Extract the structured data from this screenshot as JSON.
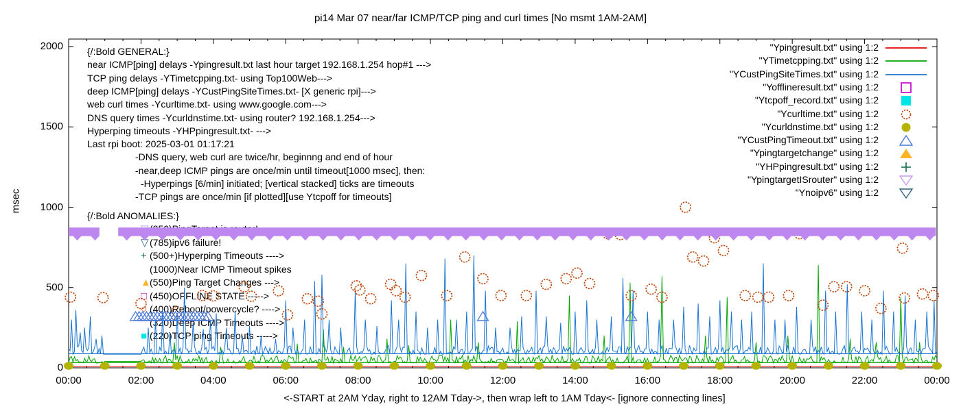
{
  "title": "pi14 Mar 07  near/far ICMP/TCP ping and curl times [No msmt 1AM-2AM]",
  "ylabel": "msec",
  "xlabel": "<-START at 2AM Yday, right to 12AM Tday->, then wrap left to 1AM Tday<- [ignore connecting lines]",
  "legend": [
    {
      "label": "\"Ypingresult.txt\" using 1:2",
      "marker": "line",
      "color": "#e60000"
    },
    {
      "label": "\"YTimetcpping.txt\" using 1:2",
      "marker": "line",
      "color": "#00a400"
    },
    {
      "label": "\"YCustPingSiteTimes.txt\" using 1:2",
      "marker": "line",
      "color": "#1874d2"
    },
    {
      "label": "\"Yofflineresult.txt\" using 1:2",
      "marker": "sq-open",
      "color": "#c913cf"
    },
    {
      "label": "\"Ytcpoff_record.txt\" using 1:2",
      "marker": "sq-fill",
      "color": "#00e5e5"
    },
    {
      "label": "\"Ycurltime.txt\" using 1:2",
      "marker": "circ-open",
      "color": "#bf4b12"
    },
    {
      "label": "\"Ycurldnstime.txt\" using 1:2",
      "marker": "circ-fill",
      "color": "#b3b300"
    },
    {
      "label": "\"YCustPingTimeout.txt\" using 1:2",
      "marker": "tri-up-open",
      "color": "#4878d8"
    },
    {
      "label": "\"Ypingtargetchange\" using 1:2",
      "marker": "tri-up-fill",
      "color": "#ffb428"
    },
    {
      "label": "\"YHPpingresult.txt\" using 1:2",
      "marker": "plus",
      "color": "#156e4e"
    },
    {
      "label": "\"YpingtargetISrouter\" using 1:2",
      "marker": "tri-dn-open",
      "color": "#c79af0"
    },
    {
      "label": "\"Ynoipv6\" using 1:2",
      "marker": "tri-dn-open",
      "color": "#2e617e"
    }
  ],
  "annotations": {
    "general": [
      {
        "text": "{/:Bold GENERAL:}",
        "indent": 0
      },
      {
        "text": "near ICMP[ping] delays -Ypingresult.txt last hour target 192.168.1.254 hop#1 --->",
        "indent": 0
      },
      {
        "text": "TCP ping delays -YTimetcpping.txt- using Top100Web--->",
        "indent": 0
      },
      {
        "text": "deep ICMP[ping] delays -YCustPingSiteTimes.txt- [X generic rpi]--->",
        "indent": 0
      },
      {
        "text": "web curl times -Ycurltime.txt- using www.google.com--->",
        "indent": 0
      },
      {
        "text": "DNS query times -Ycurldnstime.txt- using router? 192.168.1.254--->",
        "indent": 0
      },
      {
        "text": "Hyperping timeouts -YHPpingresult.txt- --->",
        "indent": 0
      },
      {
        "text": "Last rpi boot: 2025-03-01 01:17:21",
        "indent": 0
      },
      {
        "text": "-DNS query, web curl are twice/hr, beginnng and end of hour",
        "indent": 70
      },
      {
        "text": "-near,deep ICMP pings are once/min until timeout[1000 msec], then:",
        "indent": 70
      },
      {
        "text": "-Hyperpings [6/min] initiated; [vertical stacked] ticks are timeouts",
        "indent": 78
      },
      {
        "text": "-TCP pings are once/min [if plotted][use Ytcpoff for timeouts]",
        "indent": 70
      }
    ],
    "anomalies": [
      {
        "glyph": "",
        "color": "",
        "text": "{/:Bold ANOMALIES:}",
        "x": 127
      },
      {
        "glyph": "▽",
        "color": "#c79af0",
        "text": "(850)PingTarget is router!",
        "x": 205
      },
      {
        "glyph": "▽",
        "color": "#2e617e",
        "text": "(785)ipv6 failure!",
        "x": 205
      },
      {
        "glyph": "+",
        "color": "#156e4e",
        "text": "(500+)Hyperping Timeouts ---->",
        "x": 205
      },
      {
        "glyph": "",
        "color": "",
        "text": "(1000)Near ICMP Timeout spikes",
        "x": 205
      },
      {
        "glyph": "▲",
        "color": "#ffb428",
        "text": "(550)Ping Target Changes --->",
        "x": 205
      },
      {
        "glyph": "□",
        "color": "#c913cf",
        "text": "(450)OFFLINE STATE ----->",
        "x": 205
      },
      {
        "glyph": "○",
        "color": "#bf4b12",
        "text": "(400)Reboot/powercycle? ---->",
        "x": 205
      },
      {
        "glyph": "",
        "color": "",
        "text": "(320)Deep ICMP Timeouts ---->",
        "x": 205
      },
      {
        "glyph": "■",
        "color": "#00e5e5",
        "text": "(220)TCP ping Timeouts ----->",
        "x": 205
      }
    ]
  },
  "chart_data": {
    "type": "line+scatter",
    "axis": {
      "xlim_hours": [
        0,
        24
      ],
      "ylim": [
        0,
        2000
      ],
      "yticks": [
        0,
        500,
        1000,
        1500,
        2000
      ],
      "xtick_hours": [
        0,
        2,
        4,
        6,
        8,
        10,
        12,
        14,
        16,
        18,
        20,
        22,
        24
      ],
      "xtick_labels": [
        "00:00",
        "02:00",
        "04:00",
        "06:00",
        "08:00",
        "10:00",
        "12:00",
        "14:00",
        "16:00",
        "18:00",
        "20:00",
        "22:00",
        "00:00"
      ]
    },
    "no_measurement_gap_hours": [
      1,
      2
    ],
    "series": [
      {
        "name": "Ypingresult.txt",
        "type": "flat-line",
        "color": "#e60000",
        "y": 8
      },
      {
        "name": "YTimetcpping.txt",
        "type": "noisy-line",
        "color": "#00a400",
        "seed": 777,
        "base": 30,
        "noise": 48,
        "gap_y": 40,
        "spikes": [
          [
            2.9,
            160
          ],
          [
            4.2,
            130
          ],
          [
            6.3,
            150
          ],
          [
            7.05,
            240
          ],
          [
            7.6,
            130
          ],
          [
            8.8,
            180
          ],
          [
            9.4,
            140
          ],
          [
            10.55,
            300
          ],
          [
            11.3,
            160
          ],
          [
            12.4,
            290
          ],
          [
            13.85,
            450
          ],
          [
            14.8,
            200
          ],
          [
            15.5,
            530
          ],
          [
            16.4,
            570
          ],
          [
            17.6,
            200
          ],
          [
            18.2,
            440
          ],
          [
            19.0,
            160
          ],
          [
            19.9,
            200
          ],
          [
            20.7,
            640
          ],
          [
            21.6,
            180
          ],
          [
            22.3,
            160
          ],
          [
            23.0,
            440
          ],
          [
            23.5,
            160
          ]
        ]
      },
      {
        "name": "YCustPingSiteTimes.txt",
        "type": "noisy-line",
        "color": "#1874d2",
        "seed": 1,
        "base": 85,
        "noise": 55,
        "gap_y": 85,
        "spikes": [
          [
            0.08,
            300
          ],
          [
            0.18,
            360
          ],
          [
            0.3,
            220
          ],
          [
            0.45,
            250
          ],
          [
            0.6,
            320
          ],
          [
            0.75,
            180
          ],
          [
            0.9,
            200
          ],
          [
            2.2,
            250
          ],
          [
            2.4,
            300
          ],
          [
            2.6,
            360
          ],
          [
            2.8,
            220
          ],
          [
            3.0,
            340
          ],
          [
            3.2,
            500
          ],
          [
            3.45,
            280
          ],
          [
            3.7,
            240
          ],
          [
            3.9,
            300
          ],
          [
            4.1,
            340
          ],
          [
            4.35,
            250
          ],
          [
            4.6,
            350
          ],
          [
            4.8,
            200
          ],
          [
            5.0,
            260
          ],
          [
            5.3,
            200
          ],
          [
            5.7,
            180
          ],
          [
            6.0,
            420
          ],
          [
            6.2,
            250
          ],
          [
            6.5,
            300
          ],
          [
            6.8,
            540
          ],
          [
            7.0,
            580
          ],
          [
            7.2,
            300
          ],
          [
            7.5,
            250
          ],
          [
            7.9,
            480
          ],
          [
            8.2,
            300
          ],
          [
            8.5,
            260
          ],
          [
            8.9,
            420
          ],
          [
            9.1,
            300
          ],
          [
            9.3,
            650
          ],
          [
            9.6,
            350
          ],
          [
            9.9,
            250
          ],
          [
            10.2,
            300
          ],
          [
            10.4,
            680
          ],
          [
            10.7,
            300
          ],
          [
            11.0,
            350
          ],
          [
            11.2,
            700
          ],
          [
            11.5,
            480
          ],
          [
            11.8,
            250
          ],
          [
            12.2,
            250
          ],
          [
            12.5,
            320
          ],
          [
            12.9,
            480
          ],
          [
            13.2,
            320
          ],
          [
            13.6,
            280
          ],
          [
            14.0,
            350
          ],
          [
            14.3,
            420
          ],
          [
            14.6,
            300
          ],
          [
            15.0,
            320
          ],
          [
            15.3,
            560
          ],
          [
            15.6,
            480
          ],
          [
            16.0,
            350
          ],
          [
            16.3,
            300
          ],
          [
            16.7,
            300
          ],
          [
            17.0,
            380
          ],
          [
            17.4,
            400
          ],
          [
            17.7,
            320
          ],
          [
            18.0,
            420
          ],
          [
            18.3,
            350
          ],
          [
            18.6,
            300
          ],
          [
            18.9,
            350
          ],
          [
            19.2,
            650
          ],
          [
            19.5,
            300
          ],
          [
            19.8,
            300
          ],
          [
            20.1,
            380
          ],
          [
            20.5,
            300
          ],
          [
            20.9,
            480
          ],
          [
            21.2,
            350
          ],
          [
            21.5,
            520
          ],
          [
            21.9,
            350
          ],
          [
            22.2,
            300
          ],
          [
            22.5,
            480
          ],
          [
            22.8,
            350
          ],
          [
            23.1,
            450
          ],
          [
            23.4,
            300
          ],
          [
            23.7,
            350
          ],
          [
            23.9,
            420
          ]
        ]
      },
      {
        "name": "Ycurltime.txt",
        "type": "circles",
        "color": "#bf4b12",
        "points": [
          [
            0.05,
            440
          ],
          [
            0.95,
            437
          ],
          [
            2.0,
            400
          ],
          [
            3.0,
            350
          ],
          [
            3.7,
            450
          ],
          [
            4.0,
            448
          ],
          [
            4.85,
            505
          ],
          [
            5.05,
            445
          ],
          [
            5.8,
            480
          ],
          [
            6.05,
            330
          ],
          [
            6.6,
            430
          ],
          [
            6.9,
            415
          ],
          [
            7.0,
            336
          ],
          [
            7.95,
            510
          ],
          [
            8.05,
            485
          ],
          [
            8.35,
            430
          ],
          [
            8.9,
            520
          ],
          [
            9.05,
            480
          ],
          [
            9.3,
            440
          ],
          [
            9.75,
            575
          ],
          [
            10.45,
            450
          ],
          [
            10.95,
            690
          ],
          [
            11.45,
            555
          ],
          [
            11.95,
            450
          ],
          [
            12.65,
            450
          ],
          [
            13.2,
            520
          ],
          [
            13.75,
            555
          ],
          [
            14.05,
            590
          ],
          [
            14.4,
            525
          ],
          [
            14.9,
            835
          ],
          [
            15.25,
            830
          ],
          [
            15.55,
            450
          ],
          [
            16.1,
            490
          ],
          [
            16.4,
            440
          ],
          [
            17.05,
            1000
          ],
          [
            17.25,
            690
          ],
          [
            17.55,
            665
          ],
          [
            17.85,
            810
          ],
          [
            18.1,
            730
          ],
          [
            18.7,
            450
          ],
          [
            19.05,
            440
          ],
          [
            19.35,
            440
          ],
          [
            19.9,
            450
          ],
          [
            20.2,
            835
          ],
          [
            20.85,
            390
          ],
          [
            21.15,
            505
          ],
          [
            21.5,
            505
          ],
          [
            22.0,
            480
          ],
          [
            22.45,
            370
          ],
          [
            23.05,
            745
          ],
          [
            23.1,
            435
          ],
          [
            23.6,
            460
          ],
          [
            23.9,
            450
          ]
        ]
      },
      {
        "name": "Ycurldnstime.txt",
        "type": "dots",
        "color": "#b3b300",
        "y": 12,
        "x": [
          0,
          1,
          2,
          3,
          4,
          5,
          6,
          7,
          8,
          9,
          10,
          11,
          12,
          13,
          14,
          15,
          16,
          17,
          18,
          19,
          20,
          21,
          22,
          23,
          24
        ]
      },
      {
        "name": "YCustPingTimeout.txt",
        "type": "triangles-open",
        "color": "#4878d8",
        "y": 320,
        "x": [
          1.85,
          1.95,
          2.05,
          2.15,
          2.25,
          2.35,
          2.45,
          2.55,
          2.65,
          2.75,
          2.85,
          2.95,
          3.05,
          3.15,
          3.25,
          3.35,
          3.45,
          3.55,
          3.65,
          3.75,
          3.85,
          11.45,
          15.55
        ]
      },
      {
        "name": "YpingtargetISrouter",
        "type": "band",
        "color": "#bd87ef",
        "y": 850,
        "segments": [
          [
            0,
            0.85
          ],
          [
            1.37,
            23.97
          ]
        ]
      }
    ]
  }
}
